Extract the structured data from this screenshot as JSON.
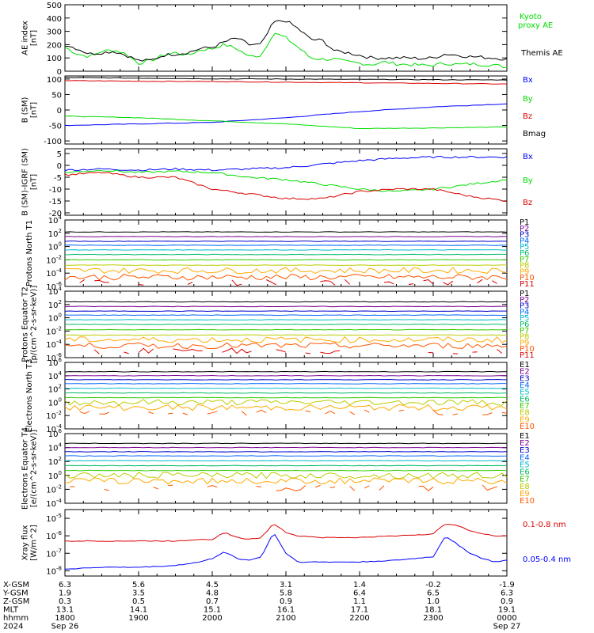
{
  "colors": {
    "black": "#000000",
    "blue": "#0000ff",
    "green": "#00dd00",
    "red": "#dd0000",
    "P": [
      "#000000",
      "#7a0090",
      "#0000cc",
      "#0066ff",
      "#00bbcc",
      "#00bb66",
      "#33cc00",
      "#bbcc00",
      "#ffaa00",
      "#ff5500",
      "#dd0000",
      "#990000"
    ]
  },
  "chart_data": [
    {
      "type": "line",
      "id": "ae",
      "ylabel": "AE index [nT]",
      "yticks": [
        "0",
        "100",
        "200",
        "300",
        "400",
        "500"
      ],
      "ylim": [
        0,
        500
      ],
      "series": [
        {
          "name": "Kyoto proxy AE",
          "color": "#00dd00",
          "x": [
            1800,
            1810,
            1820,
            1830,
            1840,
            1850,
            1900,
            1910,
            1920,
            1930,
            1940,
            1950,
            2000,
            2010,
            2020,
            2030,
            2040,
            2050,
            2100,
            2110,
            2120,
            2130,
            2140,
            2150,
            2200,
            2210,
            2220,
            2230,
            2240,
            2250,
            2300,
            2310,
            2320,
            2330,
            2340,
            2350,
            2400
          ],
          "values": [
            180,
            130,
            110,
            150,
            160,
            130,
            60,
            80,
            120,
            140,
            120,
            160,
            170,
            200,
            170,
            110,
            120,
            290,
            250,
            180,
            100,
            90,
            90,
            70,
            60,
            50,
            70,
            55,
            50,
            45,
            45,
            60,
            50,
            55,
            50,
            45,
            30
          ]
        },
        {
          "name": "Themis AE",
          "color": "#000000",
          "x": [
            1800,
            1810,
            1820,
            1830,
            1840,
            1850,
            1900,
            1910,
            1920,
            1930,
            1940,
            1950,
            2000,
            2010,
            2020,
            2030,
            2040,
            2050,
            2100,
            2110,
            2120,
            2130,
            2140,
            2150,
            2200,
            2210,
            2220,
            2230,
            2240,
            2250,
            2300,
            2310,
            2320,
            2330,
            2340,
            2350,
            2400
          ],
          "values": [
            200,
            170,
            130,
            140,
            150,
            120,
            80,
            80,
            120,
            130,
            140,
            170,
            180,
            220,
            250,
            200,
            200,
            370,
            380,
            320,
            240,
            230,
            150,
            140,
            120,
            100,
            100,
            100,
            100,
            95,
            100,
            130,
            120,
            110,
            105,
            100,
            90
          ]
        }
      ]
    },
    {
      "type": "line",
      "id": "bsm",
      "ylabel": "B (SM) [nT]",
      "yticks": [
        "-100",
        "-50",
        "0",
        "50",
        "100"
      ],
      "ylim": [
        -110,
        110
      ],
      "series": [
        {
          "name": "Bx",
          "color": "#0000ff",
          "x": [
            1800,
            1900,
            2000,
            2100,
            2200,
            2300,
            2400
          ],
          "values": [
            -50,
            -45,
            -40,
            -25,
            -5,
            10,
            20
          ]
        },
        {
          "name": "By",
          "color": "#00dd00",
          "x": [
            1800,
            1900,
            2000,
            2100,
            2200,
            2300,
            2400
          ],
          "values": [
            -20,
            -25,
            -35,
            -45,
            -60,
            -58,
            -55
          ]
        },
        {
          "name": "Bz",
          "color": "#dd0000",
          "x": [
            1800,
            1900,
            2000,
            2100,
            2200,
            2300,
            2400
          ],
          "values": [
            95,
            93,
            92,
            90,
            88,
            86,
            84
          ]
        },
        {
          "name": "Bmag",
          "color": "#000000",
          "x": [
            1800,
            1900,
            2000,
            2100,
            2200,
            2300,
            2400
          ],
          "values": [
            105,
            103,
            101,
            100,
            99,
            98,
            97
          ]
        }
      ]
    },
    {
      "type": "line",
      "id": "bigrf",
      "ylabel": "B (SM)-IGRF (SM) [nT]",
      "yticks": [
        "-20",
        "-15",
        "-10",
        "-5",
        "0",
        "5"
      ],
      "ylim": [
        -21,
        7
      ],
      "series": [
        {
          "name": "Bx",
          "color": "#0000ff",
          "x": [
            1800,
            1830,
            1900,
            1930,
            2000,
            2030,
            2100,
            2130,
            2200,
            2230,
            2300,
            2330,
            2400
          ],
          "values": [
            -2,
            -1.5,
            -2,
            -1.5,
            -2,
            -1.5,
            -1,
            0.5,
            2,
            3,
            3.5,
            3.5,
            3.5
          ]
        },
        {
          "name": "By",
          "color": "#00dd00",
          "x": [
            1800,
            1830,
            1900,
            1930,
            2000,
            2030,
            2100,
            2130,
            2200,
            2230,
            2300,
            2330,
            2400
          ],
          "values": [
            -3,
            -2,
            -3,
            -2.5,
            -3,
            -5,
            -6,
            -8,
            -10,
            -11,
            -10,
            -8,
            -6
          ]
        },
        {
          "name": "Bz",
          "color": "#dd0000",
          "x": [
            1800,
            1830,
            1900,
            1930,
            2000,
            2030,
            2100,
            2130,
            2200,
            2230,
            2300,
            2330,
            2400
          ],
          "values": [
            -4,
            -3,
            -5,
            -5,
            -10,
            -12,
            -14,
            -14,
            -11,
            -10,
            -10,
            -13,
            -15
          ]
        }
      ]
    },
    {
      "type": "line",
      "id": "pn",
      "ylabel": "Protons North T1",
      "log": true,
      "ylim": [
        -6,
        4
      ],
      "yticks": [
        "10^-6",
        "10^-4",
        "10^-2",
        "10^0",
        "10^2",
        "10^4"
      ],
      "channels": [
        "P1",
        "P2",
        "P3",
        "P4",
        "P5",
        "P6",
        "P7",
        "P8",
        "P9",
        "P10",
        "P11"
      ],
      "levels": [
        2.2,
        1.5,
        0.8,
        0.2,
        -0.5,
        -1.2,
        -2,
        -2.8,
        -3.6,
        -4.6,
        -5.4
      ]
    },
    {
      "type": "line",
      "id": "pe",
      "ylabel": "Protons Equator T2 [p/(cm^2-s-sr-keV)]",
      "log": true,
      "ylim": [
        -6,
        4
      ],
      "yticks": [
        "10^-6",
        "10^-4",
        "10^-2",
        "10^0",
        "10^2",
        "10^4"
      ],
      "channels": [
        "P1",
        "P2",
        "P3",
        "P4",
        "P5",
        "P6",
        "P7",
        "P8",
        "P9",
        "P10",
        "P11"
      ],
      "levels": [
        2.4,
        1.7,
        1,
        0.4,
        -0.3,
        -1,
        -1.8,
        -2.6,
        -3.3,
        -4.2,
        -5
      ]
    },
    {
      "type": "line",
      "id": "en",
      "ylabel": "Electrons North T3",
      "log": true,
      "ylim": [
        -4,
        6
      ],
      "yticks": [
        "10^-4",
        "10^-2",
        "10^0",
        "10^2",
        "10^4",
        "10^6"
      ],
      "channels": [
        "E1",
        "E2",
        "E3",
        "E4",
        "E5",
        "E6",
        "E7",
        "E8",
        "E9",
        "E10"
      ],
      "levels": [
        4.6,
        4,
        3.4,
        2.8,
        2.1,
        1.4,
        0.7,
        0,
        -0.8,
        -1.6
      ]
    },
    {
      "type": "line",
      "id": "ee",
      "ylabel": "Electrons Equator T4 [e/(cm^2-s-sr-keV)]",
      "log": true,
      "ylim": [
        -4,
        6
      ],
      "yticks": [
        "10^-4",
        "10^-2",
        "10^0",
        "10^2",
        "10^4",
        "10^6"
      ],
      "channels": [
        "E1",
        "E2",
        "E3",
        "E4",
        "E5",
        "E6",
        "E7",
        "E8",
        "E9",
        "E10"
      ],
      "levels": [
        4.6,
        4,
        3.4,
        2.8,
        2.1,
        1.4,
        0.7,
        0,
        -0.8,
        -1.8
      ]
    },
    {
      "type": "line",
      "id": "xray",
      "ylabel": "Xray flux [W/m^2]",
      "log": true,
      "ylim": [
        -8.3,
        -4.5
      ],
      "yticks": [
        "10^-8",
        "10^-7",
        "10^-6",
        "10^-5"
      ],
      "series": [
        {
          "name": "0.1-0.8 nm",
          "color": "#dd0000",
          "x": [
            1800,
            1830,
            1900,
            1930,
            1950,
            2000,
            2010,
            2020,
            2030,
            2040,
            2050,
            2100,
            2110,
            2130,
            2200,
            2230,
            2300,
            2310,
            2320,
            2330,
            2340,
            2350,
            2400
          ],
          "values": [
            -6.3,
            -6.3,
            -6.3,
            -6.3,
            -6.2,
            -6.2,
            -5.8,
            -6.1,
            -6.2,
            -6.1,
            -5.3,
            -5.8,
            -6,
            -6.1,
            -6.1,
            -6,
            -5.9,
            -5.3,
            -5.4,
            -5.7,
            -5.9,
            -6,
            -6
          ]
        },
        {
          "name": "0.05-0.4 nm",
          "color": "#0000ff",
          "x": [
            1800,
            1830,
            1900,
            1930,
            1950,
            2000,
            2010,
            2020,
            2030,
            2040,
            2050,
            2100,
            2110,
            2130,
            2200,
            2230,
            2300,
            2310,
            2320,
            2330,
            2340,
            2350,
            2400
          ],
          "values": [
            -7.9,
            -7.8,
            -7.8,
            -7.7,
            -7.5,
            -7.3,
            -6.9,
            -7.3,
            -7.4,
            -7.2,
            -5.8,
            -7,
            -7.5,
            -7.5,
            -7.5,
            -7.4,
            -7.2,
            -6,
            -6.5,
            -7,
            -7.3,
            -7.5,
            -7.4
          ]
        }
      ]
    }
  ],
  "axis_table": {
    "rows": [
      {
        "label": "X-GSM",
        "values": [
          "6.3",
          "5.6",
          "4.5",
          "3.1",
          "1.4",
          "-0.2",
          "-1.9"
        ]
      },
      {
        "label": "Y-GSM",
        "values": [
          "1.9",
          "3.5",
          "4.8",
          "5.8",
          "6.4",
          "6.5",
          "6.3"
        ]
      },
      {
        "label": "Z-GSM",
        "values": [
          "0.3",
          "0.5",
          "0.7",
          "0.9",
          "1.1",
          "1.0",
          "0.9"
        ]
      },
      {
        "label": "MLT",
        "values": [
          "13.1",
          "14.1",
          "15.1",
          "16.1",
          "17.1",
          "18.1",
          "19.1"
        ]
      },
      {
        "label": "hhmm",
        "values": [
          "1800",
          "1900",
          "2000",
          "2100",
          "2200",
          "2300",
          "0000"
        ]
      }
    ],
    "year": "2024",
    "date_start": "Sep 26",
    "date_end": "Sep 27"
  }
}
